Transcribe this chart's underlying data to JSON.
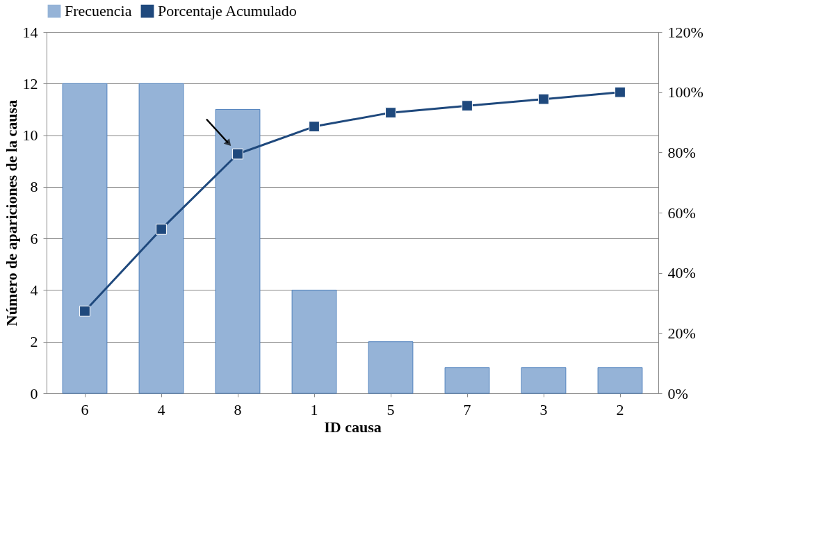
{
  "chart_data": {
    "type": "bar",
    "xlabel": "ID causa",
    "ylabel": "Número de apariciones de la causa",
    "categories": [
      "6",
      "4",
      "8",
      "1",
      "5",
      "7",
      "3",
      "2"
    ],
    "series": [
      {
        "name": "Frecuencia",
        "color": "#95b3d7",
        "values": [
          12,
          12,
          11,
          4,
          2,
          1,
          1,
          1
        ]
      },
      {
        "name": "Porcentaje Acumulado",
        "type": "line",
        "axis": "y2",
        "color": "#1f497d",
        "marker": "square",
        "values": [
          27.3,
          54.5,
          79.5,
          88.6,
          93.2,
          95.5,
          97.7,
          100
        ]
      }
    ],
    "ylim": [
      0,
      14
    ],
    "yticks": [
      0,
      2,
      4,
      6,
      8,
      10,
      12,
      14
    ],
    "y2lim": [
      0,
      120
    ],
    "y2ticks": [
      {
        "value": 0,
        "label": "0%"
      },
      {
        "value": 20,
        "label": "20%"
      },
      {
        "value": 40,
        "label": "40%"
      },
      {
        "value": 60,
        "label": "60%"
      },
      {
        "value": 80,
        "label": "80%"
      },
      {
        "value": 100,
        "label": "100%"
      },
      {
        "value": 120,
        "label": "120%"
      }
    ],
    "grid": "y",
    "legend": "top"
  }
}
